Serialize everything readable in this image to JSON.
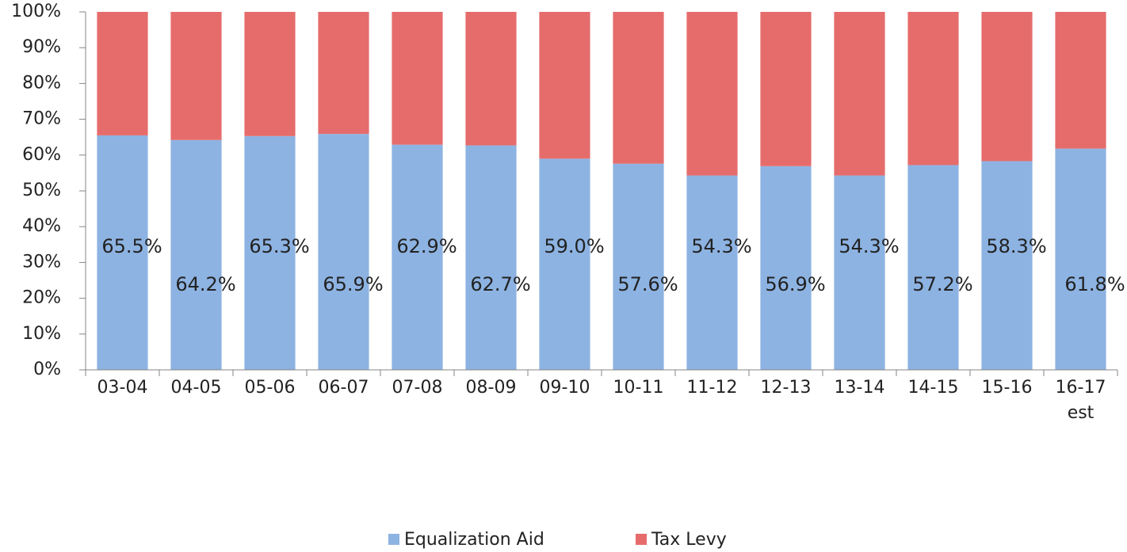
{
  "chart_data": {
    "type": "stacked_bar",
    "categories": [
      "03-04",
      "04-05",
      "05-06",
      "06-07",
      "07-08",
      "08-09",
      "09-10",
      "10-11",
      "11-12",
      "12-13",
      "13-14",
      "14-15",
      "15-16",
      "16-17 est"
    ],
    "series": [
      {
        "name": "Equalization Aid",
        "color": "#8db3e2",
        "values": [
          65.5,
          64.2,
          65.3,
          65.9,
          62.9,
          62.7,
          59.0,
          57.6,
          54.3,
          56.9,
          54.3,
          57.2,
          58.3,
          61.8
        ],
        "value_labels": [
          "65.5%",
          "64.2%",
          "65.3%",
          "65.9%",
          "62.9%",
          "62.7%",
          "59.0%",
          "57.6%",
          "54.3%",
          "56.9%",
          "54.3%",
          "57.2%",
          "58.3%",
          "61.8%"
        ]
      },
      {
        "name": "Tax Levy",
        "color": "#e66c6c",
        "values": [
          34.5,
          35.8,
          34.7,
          34.1,
          37.1,
          37.3,
          41.0,
          42.4,
          45.7,
          43.1,
          45.7,
          42.8,
          41.7,
          38.2
        ]
      }
    ],
    "ylim": [
      0,
      100
    ],
    "yticks": [
      {
        "value": 0,
        "label": "0%"
      },
      {
        "value": 10,
        "label": "10%"
      },
      {
        "value": 20,
        "label": "20%"
      },
      {
        "value": 30,
        "label": "30%"
      },
      {
        "value": 40,
        "label": "40%"
      },
      {
        "value": 50,
        "label": "50%"
      },
      {
        "value": 60,
        "label": "60%"
      },
      {
        "value": 70,
        "label": "70%"
      },
      {
        "value": 80,
        "label": "80%"
      },
      {
        "value": 90,
        "label": "90%"
      },
      {
        "value": 100,
        "label": "100%"
      }
    ],
    "grid": false,
    "legend": "bottom"
  }
}
